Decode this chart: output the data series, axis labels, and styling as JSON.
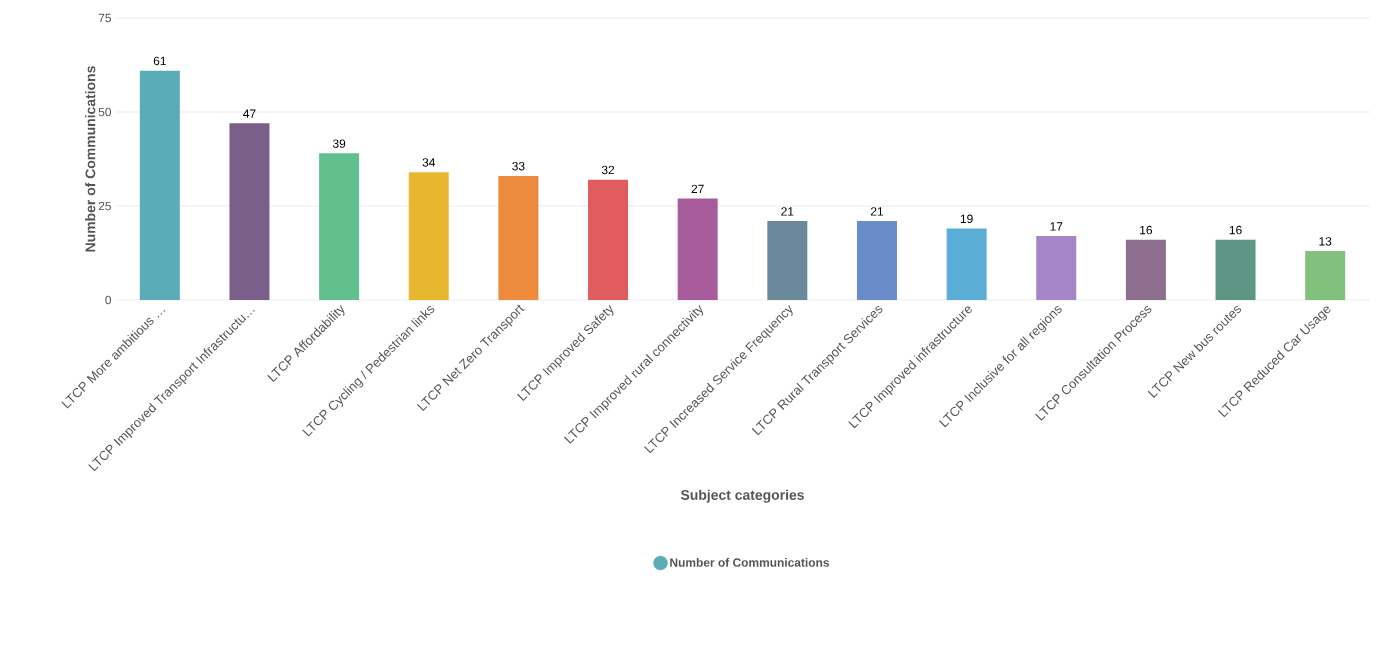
{
  "chart_data": {
    "type": "bar",
    "xlabel": "Subject categories",
    "ylabel": "Number of Communications",
    "categories": [
      "LTCP More ambitious …",
      "LTCP Improved Transport Infrastructu…",
      "LTCP Affordability",
      "LTCP Cycling / Pedestrian links",
      "LTCP Net Zero Transport",
      "LTCP Improved Safety",
      "LTCP Improved rural connectivity",
      "LTCP Increased Service Frequency",
      "LTCP Rural Transport Services",
      "LTCP Improved infrastructure",
      "LTCP Inclusive for all regions",
      "LTCP Consultation Process",
      "LTCP New bus routes",
      "LTCP Reduced Car Usage"
    ],
    "series": [
      {
        "name": "Number of Communications",
        "color": "#5aacb8",
        "colors": [
          "#5aacb8",
          "#7a5f8a",
          "#62bf8e",
          "#e8b730",
          "#ee8a3c",
          "#e05c5e",
          "#a75c9c",
          "#6a8a9c",
          "#6a8cc8",
          "#5aaed6",
          "#a585c8",
          "#8e6e8e",
          "#5e9585",
          "#82c07e"
        ],
        "values": [
          61,
          47,
          39,
          34,
          33,
          32,
          27,
          21,
          21,
          19,
          17,
          16,
          16,
          13
        ]
      }
    ],
    "ylim": [
      0,
      75
    ],
    "yticks": [
      0,
      25,
      50,
      75
    ],
    "grid": "y",
    "data_labels": true,
    "legend": "bottom"
  }
}
